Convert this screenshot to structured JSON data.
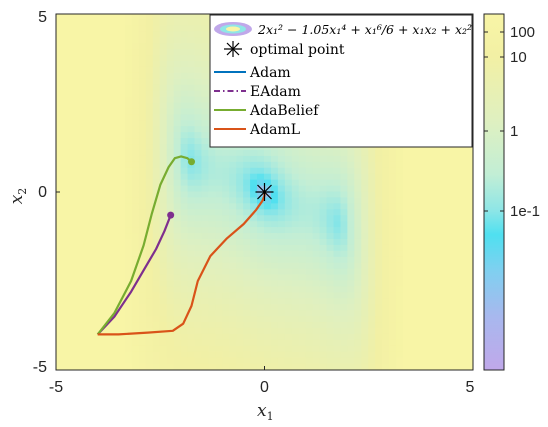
{
  "chart_data": {
    "type": "contour",
    "xlabel": "x",
    "xlabel_sub": "1",
    "ylabel": "x",
    "ylabel_sub": "2",
    "xlim": [
      -5,
      5
    ],
    "ylim": [
      -5,
      5
    ],
    "xticks": [
      "-5",
      "0",
      "5"
    ],
    "yticks": [
      "5",
      "0",
      "-5"
    ],
    "grid": false,
    "legend_position": "top-right",
    "legend": [
      {
        "name": "2x₁² − 1.05x₁⁴ + x₁⁶/6 + x₁x₂ + x₂²",
        "kind": "contour"
      },
      {
        "name": "optimal point",
        "kind": "marker"
      },
      {
        "name": "Adam",
        "color": "#0072BD"
      },
      {
        "name": "EAdam",
        "color": "#7E2F8E"
      },
      {
        "name": "AdaBelief",
        "color": "#77AC30"
      },
      {
        "name": "AdamL",
        "color": "#D95319"
      }
    ],
    "colorbar": {
      "scale": "log",
      "tick_labels": [
        "100",
        "10",
        "1",
        "1e-1"
      ]
    },
    "optimal_point": {
      "x": 0,
      "y": 0
    },
    "series": [
      {
        "name": "EAdam",
        "color": "#7E2F8E",
        "x": [
          -4.0,
          -3.6,
          -3.2,
          -2.9,
          -2.6,
          -2.4,
          -2.3,
          -2.25
        ],
        "y": [
          -4.0,
          -3.5,
          -2.8,
          -2.2,
          -1.6,
          -1.1,
          -0.8,
          -0.65
        ]
      },
      {
        "name": "AdaBelief",
        "color": "#77AC30",
        "x": [
          -4.0,
          -3.6,
          -3.2,
          -2.9,
          -2.7,
          -2.5,
          -2.3,
          -2.15,
          -2.0,
          -1.85,
          -1.75
        ],
        "y": [
          -4.0,
          -3.4,
          -2.5,
          -1.5,
          -0.6,
          0.2,
          0.7,
          0.95,
          1.0,
          0.95,
          0.85
        ]
      },
      {
        "name": "AdamL",
        "color": "#D95319",
        "x": [
          -4.0,
          -3.5,
          -2.8,
          -2.2,
          -1.95,
          -1.75,
          -1.6,
          -1.3,
          -0.9,
          -0.5,
          -0.2,
          -0.05,
          0.0,
          0.0
        ],
        "y": [
          -4.0,
          -4.0,
          -3.95,
          -3.9,
          -3.7,
          -3.2,
          -2.5,
          -1.8,
          -1.3,
          -0.9,
          -0.5,
          -0.25,
          -0.1,
          0.0
        ]
      },
      {
        "name": "Adam",
        "color": "#0072BD",
        "x": [
          0.0
        ],
        "y": [
          0.0
        ]
      }
    ]
  }
}
